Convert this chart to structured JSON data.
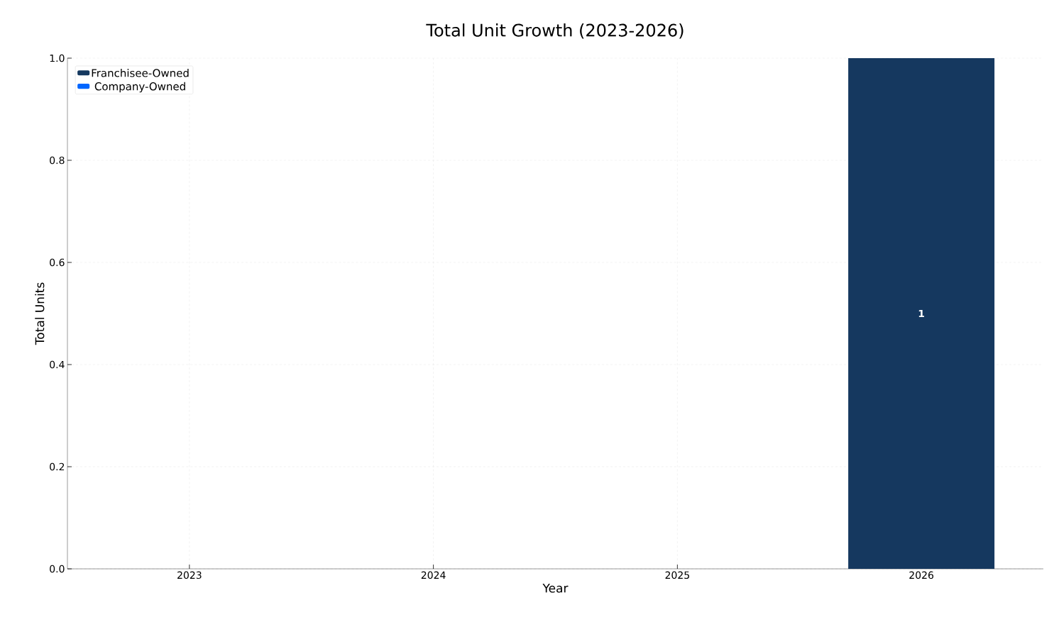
{
  "chart_data": {
    "type": "bar",
    "title": "Total Unit Growth (2023-2026)",
    "xlabel": "Year",
    "ylabel": "Total Units",
    "categories": [
      "2023",
      "2024",
      "2025",
      "2026"
    ],
    "stacked": true,
    "series": [
      {
        "name": "Franchisee-Owned",
        "color": "#15385f",
        "values": [
          0,
          0,
          0,
          1
        ],
        "value_labels": [
          null,
          null,
          null,
          "1"
        ]
      },
      {
        "name": "Company-Owned",
        "color": "#0066ff",
        "values": [
          0,
          0,
          0,
          0
        ]
      }
    ],
    "ylim": [
      0,
      1
    ],
    "yticks": [
      {
        "value": 0,
        "label": "0.0"
      },
      {
        "value": 0.2,
        "label": "0.2"
      },
      {
        "value": 0.4,
        "label": "0.4"
      },
      {
        "value": 0.6,
        "label": "0.6"
      },
      {
        "value": 0.8,
        "label": "0.8"
      },
      {
        "value": 1,
        "label": "1.0"
      }
    ],
    "grid": true,
    "legend": "top left"
  }
}
